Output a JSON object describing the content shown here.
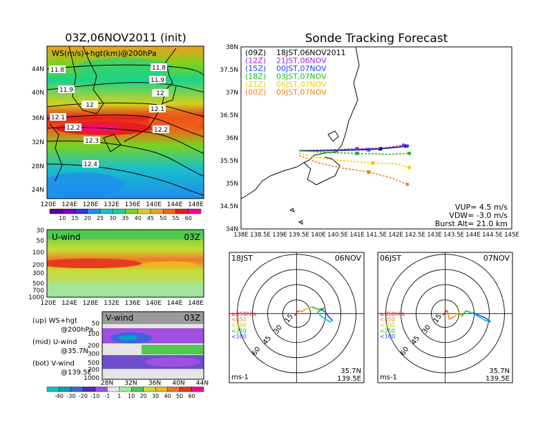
{
  "left": {
    "title": "03Z,06NOV2011 (init)",
    "map_label": "WS(m/s)+hgt(km)@200hPa",
    "map_lat_ticks": [
      "44N",
      "40N",
      "36N",
      "32N",
      "28N",
      "24N"
    ],
    "map_lon_ticks": [
      "120E",
      "124E",
      "128E",
      "132E",
      "136E",
      "140E",
      "144E",
      "148E"
    ],
    "contours": [
      "11.8",
      "11.8",
      "11.9",
      "11.9",
      "12",
      "12",
      "12.1",
      "12.1",
      "12.2",
      "12.2",
      "12.3",
      "12.4"
    ],
    "ws_colorbar": [
      "10",
      "15",
      "20",
      "25",
      "30",
      "35",
      "40",
      "45",
      "50",
      "55",
      "60"
    ],
    "uwind": {
      "label": "U-wind",
      "time": "03Z",
      "p_ticks": [
        "30",
        "50",
        "100",
        "200",
        "300",
        "500",
        "700",
        "1000"
      ],
      "lon_ticks": [
        "120E",
        "124E",
        "128E",
        "132E",
        "136E",
        "140E",
        "144E",
        "148E"
      ]
    },
    "vwind": {
      "label": "V-wind",
      "time": "03Z",
      "p_ticks": [
        "50",
        "100",
        "200",
        "300",
        "500",
        "700",
        "1000"
      ],
      "lat_ticks": [
        "28N",
        "32N",
        "36N",
        "40N",
        "44N"
      ]
    },
    "legend": {
      "l1": "(up) WS+hgt",
      "l2": "@200hPa",
      "l3": "(mid) U-wind",
      "l4": "@35.7N",
      "l5": "(bot) V-wind",
      "l6": "@139.5E"
    },
    "wind_colorbar": [
      "-40",
      "-30",
      "-20",
      "-10",
      "-1",
      "1",
      "10",
      "20",
      "30",
      "40",
      "50",
      "60"
    ]
  },
  "tracking": {
    "title": "Sonde Tracking Forecast",
    "launches": [
      {
        "code": "(09Z)",
        "label": "18JST,06NOV2011",
        "color": "#000000"
      },
      {
        "code": "(12Z)",
        "label": "21JST,06NOV",
        "color": "#a020f0"
      },
      {
        "code": "(15Z)",
        "label": "00JST,07NOV",
        "color": "#2040ff"
      },
      {
        "code": "(18Z)",
        "label": "03JST,07NOV",
        "color": "#18b818"
      },
      {
        "code": "(21Z)",
        "label": "06JST,07NOV",
        "color": "#e8d000"
      },
      {
        "code": "(00Z)",
        "label": "09JST,07NOV",
        "color": "#f08020"
      }
    ],
    "y_ticks": [
      "38N",
      "37.5N",
      "37N",
      "36.5N",
      "36N",
      "35.5N",
      "35N",
      "34.5N",
      "34N"
    ],
    "x_ticks": [
      "138E",
      "138.5E",
      "139E",
      "139.5E",
      "140E",
      "140.5E",
      "141E",
      "141.5E",
      "142E",
      "142.5E",
      "143E",
      "143.5E",
      "144E",
      "144.5E",
      "145E"
    ],
    "params": {
      "vup": "VUP= 4.5 m/s",
      "vdw": "VDW= -3.0 m/s",
      "burst": "Burst Alt= 21.0 km"
    }
  },
  "hodographs": [
    {
      "time": "18JST",
      "date": "06NOV",
      "lat": "35.7N",
      "lon": "139.5E",
      "unit": "ms-1",
      "rings": [
        "15",
        "30",
        "45",
        "60"
      ],
      "levels": [
        "≥850hPa",
        "<850",
        "<500",
        "<250",
        "<100"
      ]
    },
    {
      "time": "06JST",
      "date": "07NOV",
      "lat": "35.7N",
      "lon": "139.5E",
      "unit": "ms-1",
      "rings": [
        "15",
        "30",
        "45",
        "60"
      ],
      "levels": [
        "≥850hPa",
        "<850",
        "<500",
        "<250",
        "<100"
      ]
    }
  ],
  "colors": {
    "ws_scale": [
      "#7b00c8",
      "#3a2cf0",
      "#1e8cf0",
      "#19c0c8",
      "#19d28c",
      "#7ad21e",
      "#d2d21e",
      "#f0a01e",
      "#f06419",
      "#e61e1e",
      "#ff00a0"
    ],
    "wind_scale": [
      "#00a0c8",
      "#3c64dc",
      "#5028c8",
      "#a050e0",
      "#e6e6e6",
      "#a0e6a0",
      "#50c850",
      "#c8dc32",
      "#f0b41e",
      "#f07828",
      "#e63c1e",
      "#ff0096"
    ]
  }
}
